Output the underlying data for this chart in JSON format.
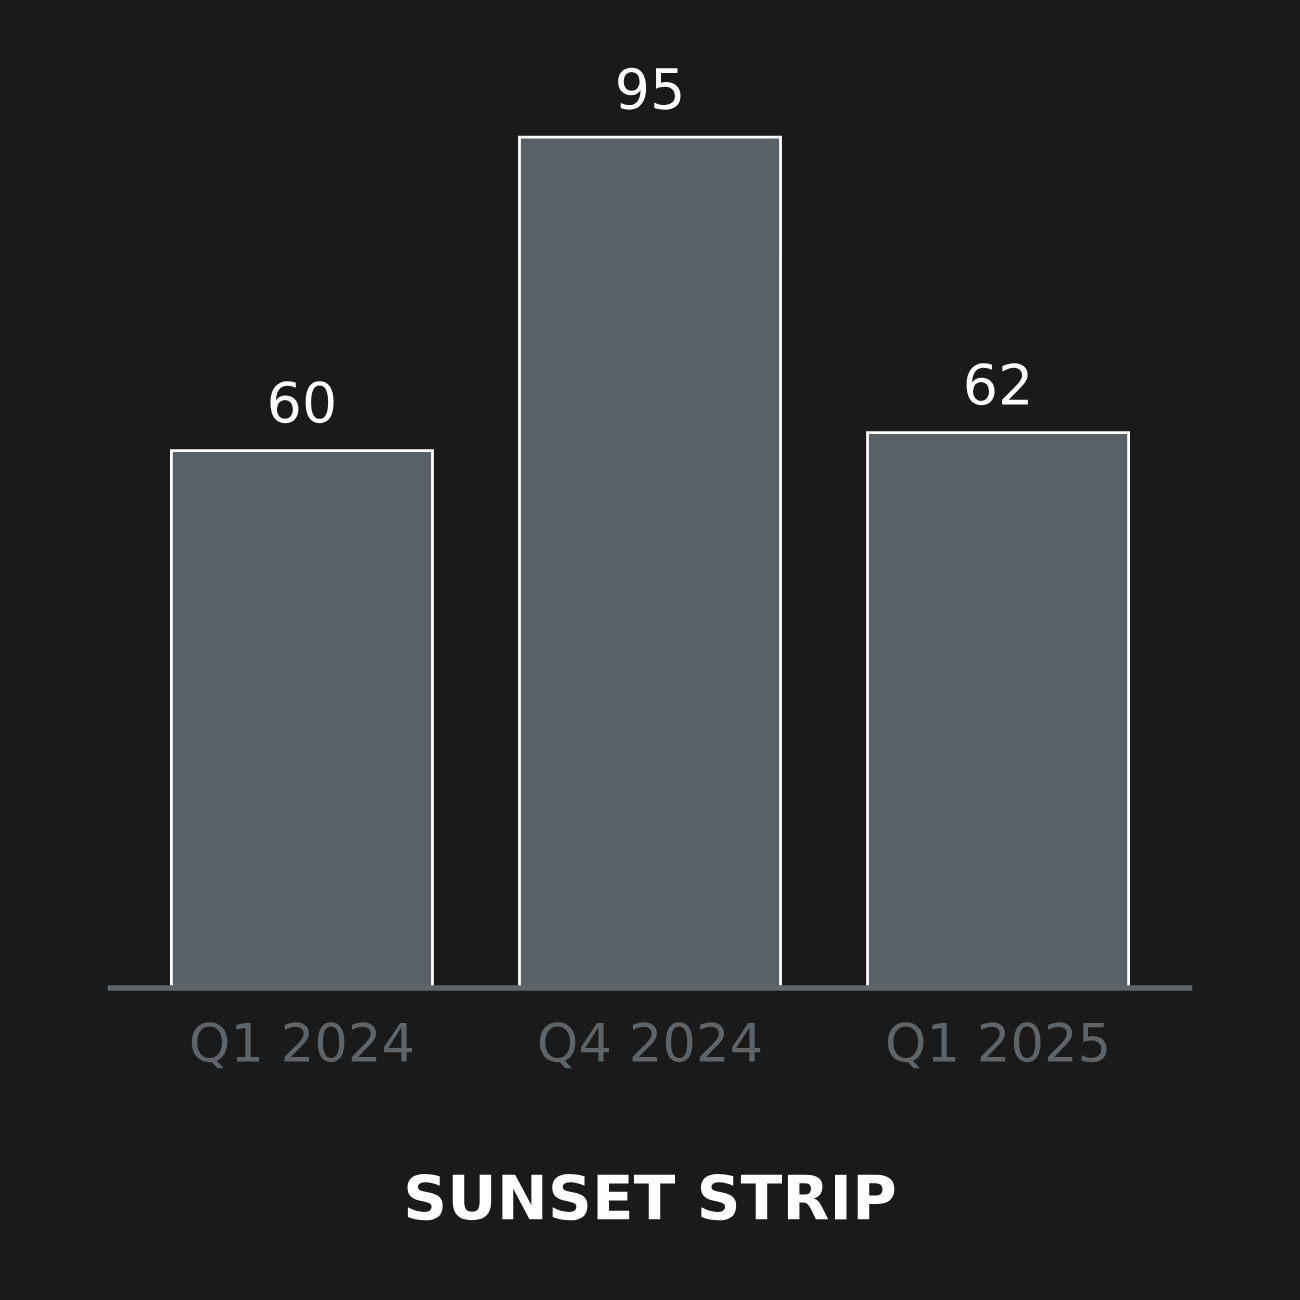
{
  "chart_data": {
    "type": "bar",
    "title": "SUNSET STRIP",
    "categories": [
      "Q1 2024",
      "Q4 2024",
      "Q1 2025"
    ],
    "values": [
      60,
      95,
      62
    ],
    "color": "#596066",
    "data_labels": true,
    "grid": false
  }
}
